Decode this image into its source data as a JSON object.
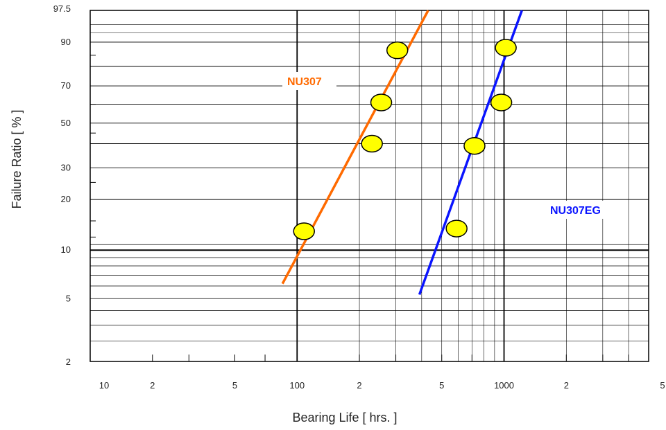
{
  "chart_data": {
    "type": "scatter",
    "xlabel": "Bearing Life [ hrs. ]",
    "ylabel": "Failure Ratio [ % ]",
    "x_scale": "log",
    "y_scale": "weibull",
    "xlim": [
      10,
      5000
    ],
    "ylim": [
      2,
      97.5
    ],
    "grid": true,
    "x_ticks": [
      {
        "value": 10,
        "label": "10"
      },
      {
        "value": 20,
        "label": "2"
      },
      {
        "value": 50,
        "label": "5"
      },
      {
        "value": 100,
        "label": "100"
      },
      {
        "value": 200,
        "label": "2"
      },
      {
        "value": 500,
        "label": "5"
      },
      {
        "value": 1000,
        "label": "1000"
      },
      {
        "value": 2000,
        "label": "2"
      },
      {
        "value": 5000,
        "label": "5"
      }
    ],
    "y_ticks": [
      {
        "value": 97.5,
        "label": "97.5"
      },
      {
        "value": 90,
        "label": "90"
      },
      {
        "value": 70,
        "label": "70"
      },
      {
        "value": 50,
        "label": "50"
      },
      {
        "value": 30,
        "label": "30"
      },
      {
        "value": 20,
        "label": "20"
      },
      {
        "value": 10,
        "label": "10"
      },
      {
        "value": 5,
        "label": "5"
      },
      {
        "value": 2,
        "label": "2"
      }
    ],
    "series": [
      {
        "name": "NU307",
        "color": "#ff6a00",
        "points": [
          {
            "x": 108,
            "y": 13
          },
          {
            "x": 230,
            "y": 40
          },
          {
            "x": 255,
            "y": 61
          },
          {
            "x": 305,
            "y": 87
          }
        ],
        "fit_line": [
          {
            "x": 85,
            "y": 6.2
          },
          {
            "x": 430,
            "y": 97.5
          }
        ]
      },
      {
        "name": "NU307EG",
        "color": "#0a14ff",
        "points": [
          {
            "x": 590,
            "y": 13.5
          },
          {
            "x": 720,
            "y": 39
          },
          {
            "x": 970,
            "y": 61
          },
          {
            "x": 1020,
            "y": 88
          }
        ],
        "fit_line": [
          {
            "x": 390,
            "y": 5.3
          },
          {
            "x": 1220,
            "y": 97.5
          }
        ]
      }
    ]
  }
}
